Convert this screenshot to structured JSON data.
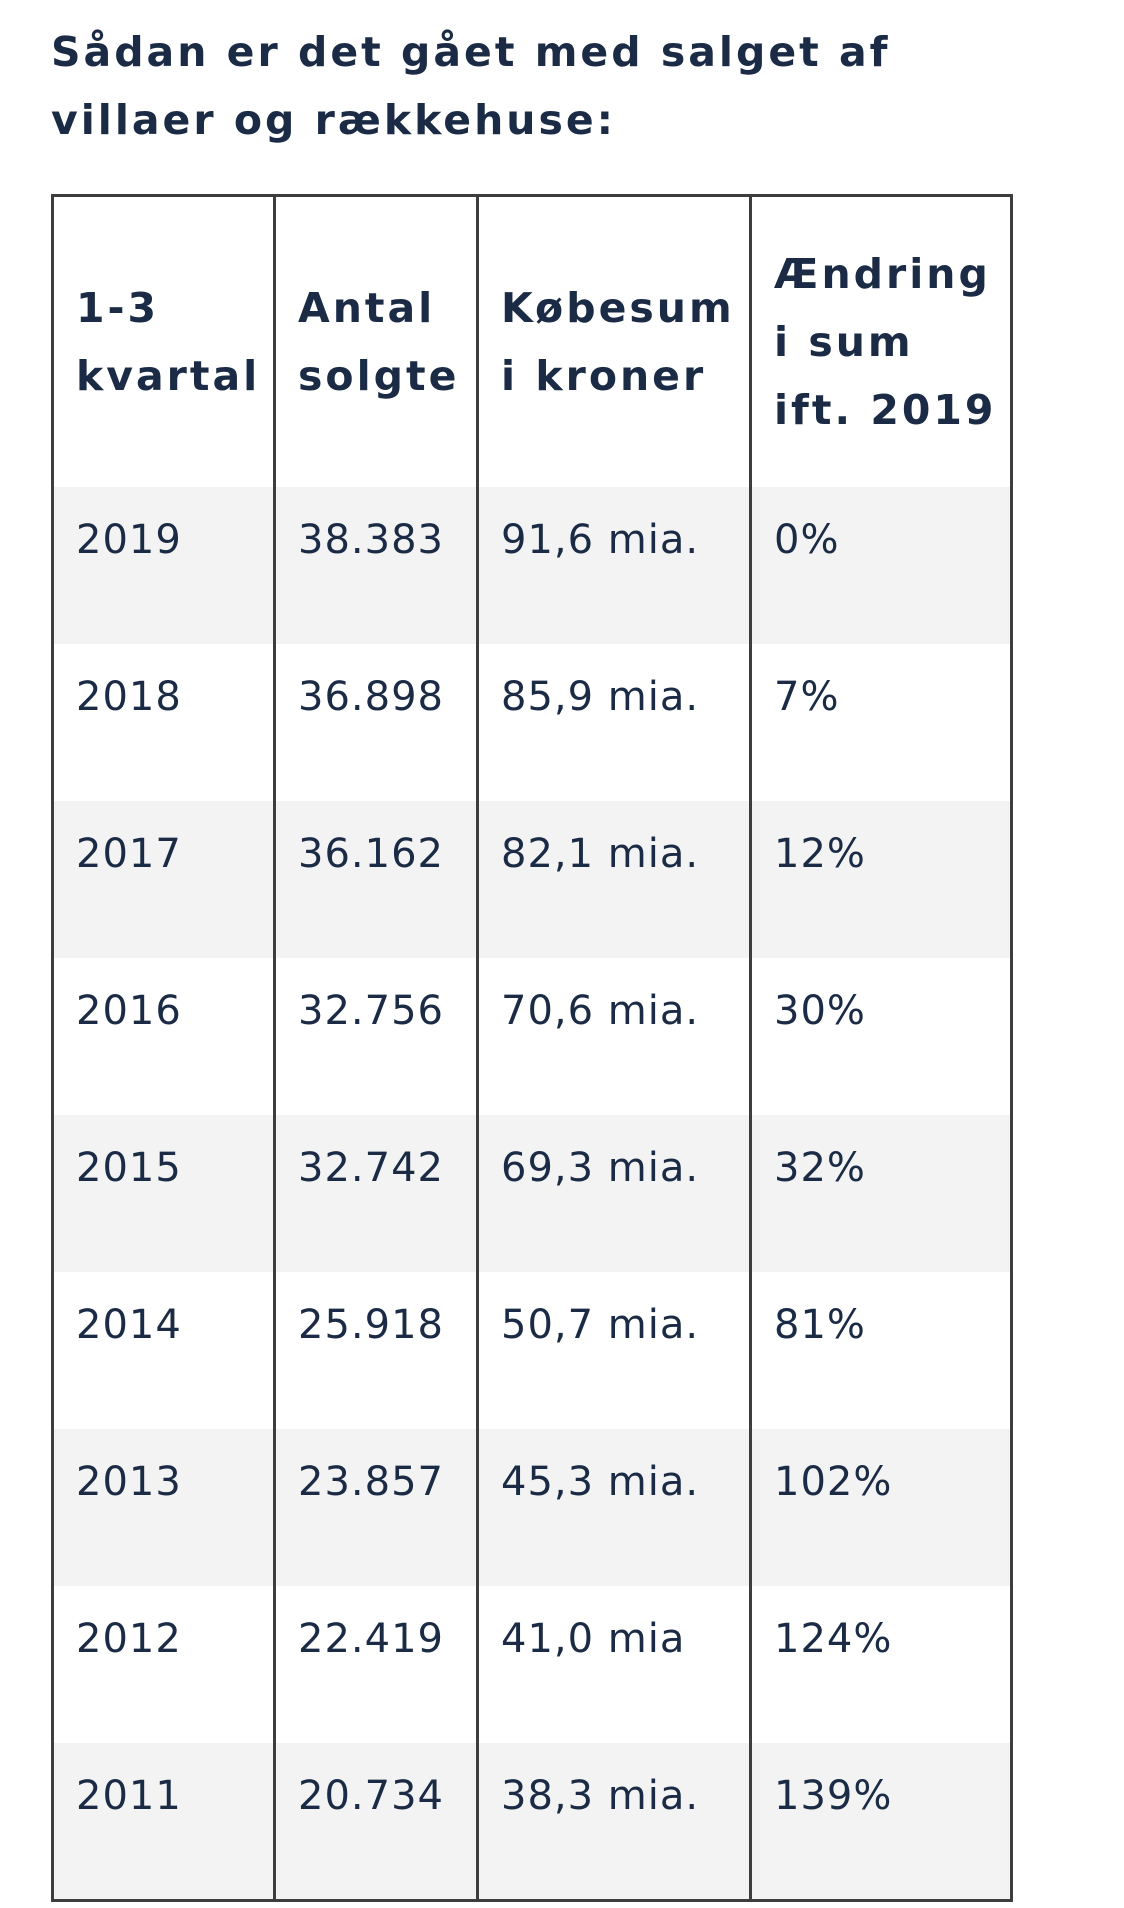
{
  "heading": {
    "line1": "Sådan er det gået med salget af",
    "line2": "villaer og rækkehuse:"
  },
  "table": {
    "headers": [
      {
        "lines": [
          "1-3",
          "kvartal"
        ]
      },
      {
        "lines": [
          "Antal",
          "solgte"
        ]
      },
      {
        "lines": [
          "Købesum",
          "i kroner"
        ]
      },
      {
        "lines": [
          "Ændring",
          "i sum",
          "ift. 2019"
        ]
      }
    ],
    "rows": [
      [
        "2019",
        "38.383",
        "91,6 mia.",
        "0%"
      ],
      [
        "2018",
        "36.898",
        "85,9 mia.",
        "7%"
      ],
      [
        "2017",
        "36.162",
        "82,1 mia.",
        "12%"
      ],
      [
        "2016",
        "32.756",
        "70,6 mia.",
        "30%"
      ],
      [
        "2015",
        "32.742",
        "69,3 mia.",
        "32%"
      ],
      [
        "2014",
        "25.918",
        "50,7 mia.",
        "81%"
      ],
      [
        "2013",
        "23.857",
        "45,3 mia.",
        "102%"
      ],
      [
        "2012",
        "22.419",
        "41,0 mia",
        "124%"
      ],
      [
        "2011",
        "20.734",
        "38,3 mia.",
        "139%"
      ]
    ]
  },
  "colors": {
    "text": "#1b2b45",
    "border": "#3d3d3d",
    "row_stripe": "#f3f3f3",
    "background": "#ffffff"
  }
}
